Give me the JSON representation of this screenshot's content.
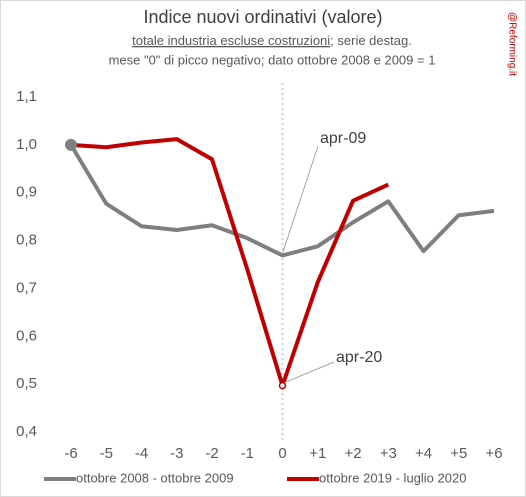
{
  "chart_data": {
    "type": "line",
    "title": "Indice nuovi ordinativi (valore)",
    "subtitle_underlined": "totale industria escluse costruzioni",
    "subtitle_rest": "; serie destag.",
    "note": "mese \"0\" di picco negativo; dato ottobre 2008 e 2009 = 1",
    "source": "@Reforming.it",
    "categories": [
      "-6",
      "-5",
      "-4",
      "-3",
      "-2",
      "-1",
      "0",
      "+1",
      "+2",
      "+3",
      "+4",
      "+5",
      "+6"
    ],
    "series": [
      {
        "name": "ottobre 2008 - ottobre 2009",
        "color": "#7f7f7f",
        "values": [
          1.0,
          0.877,
          0.83,
          0.822,
          0.832,
          0.805,
          0.769,
          0.788,
          0.838,
          0.882,
          0.778,
          0.853,
          0.862
        ]
      },
      {
        "name": "ottobre 2019 - luglio 2020",
        "color": "#c00000",
        "values": [
          1.0,
          0.995,
          1.005,
          1.012,
          0.97,
          0.74,
          0.497,
          0.713,
          0.883,
          0.917,
          null,
          null,
          null
        ]
      }
    ],
    "annotations": [
      {
        "text": "apr-09"
      },
      {
        "text": "apr-20"
      }
    ],
    "ylim": [
      0.4,
      1.1
    ],
    "yticks": [
      {
        "value": 0.4,
        "label": "0,4"
      },
      {
        "value": 0.5,
        "label": "0,5"
      },
      {
        "value": 0.6,
        "label": "0,6"
      },
      {
        "value": 0.7,
        "label": "0,7"
      },
      {
        "value": 0.8,
        "label": "0,8"
      },
      {
        "value": 0.9,
        "label": "0,9"
      },
      {
        "value": 1.0,
        "label": "1,0"
      },
      {
        "value": 1.1,
        "label": "1,1"
      }
    ],
    "grid": false
  }
}
